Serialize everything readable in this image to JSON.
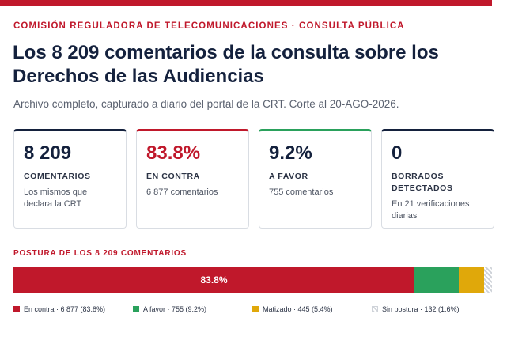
{
  "header": {
    "kicker": "COMISIÓN REGULADORA DE TELECOMUNICACIONES · CONSULTA PÚBLICA",
    "title": "Los 8 209 comentarios de la consulta sobre los Derechos de las Audiencias",
    "subtitle": "Archivo completo, capturado a diario del portal de la CRT. Corte al 20-AGO-2026."
  },
  "cards": [
    {
      "value": "8 209",
      "label": "COMENTARIOS",
      "note": "Los mismos que declara la CRT"
    },
    {
      "value": "83.8%",
      "label": "EN CONTRA",
      "note": "6 877 comentarios"
    },
    {
      "value": "9.2%",
      "label": "A FAVOR",
      "note": "755 comentarios"
    },
    {
      "value": "0",
      "label": "BORRADOS DETECTADOS",
      "note": "En 21 verificaciones diarias"
    }
  ],
  "breakdown": {
    "title": "POSTURA DE LOS 8 209 COMENTARIOS",
    "bar_label": "83.8%",
    "segments": [
      {
        "key": "contra",
        "percent": 83.8,
        "color": "#c0182b",
        "legend": "En contra · 6 877 (83.8%)"
      },
      {
        "key": "favor",
        "percent": 9.2,
        "color": "#2aa15c",
        "legend": "A favor · 755 (9.2%)"
      },
      {
        "key": "matizado",
        "percent": 5.4,
        "color": "#e0a80a",
        "legend": "Matizado · 445 (5.4%)"
      },
      {
        "key": "sin",
        "percent": 1.6,
        "color": "#cfd3d9",
        "legend": "Sin postura · 132 (1.6%)"
      }
    ]
  }
}
